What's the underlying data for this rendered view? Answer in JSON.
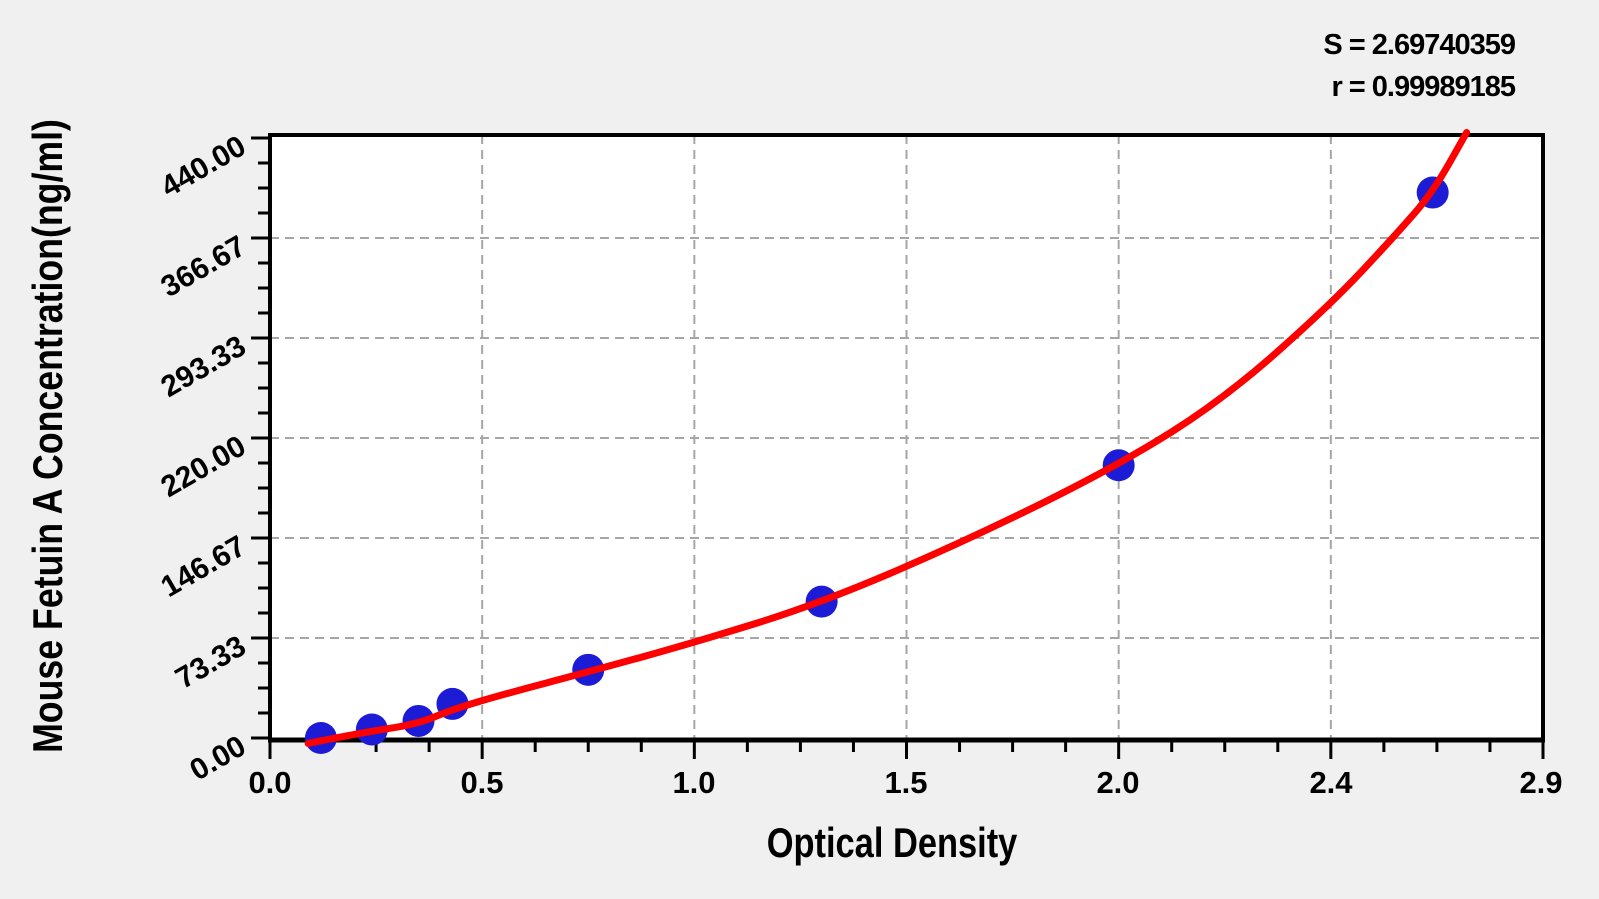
{
  "figure": {
    "background_color": "#f0f0f0",
    "plot_background_color": "#ffffff",
    "stats": {
      "s_line": "S = 2.69740359",
      "r_line": "r = 0.99989185"
    }
  },
  "chart_data": {
    "type": "scatter",
    "title": "",
    "xlabel": "Optical Density",
    "ylabel": "Mouse Fetuin A Concentration(ng/ml)",
    "x_tick_labels": [
      "0.0",
      "0.5",
      "1.0",
      "1.5",
      "2.0",
      "2.4",
      "2.9"
    ],
    "x_tick_values": [
      0.0,
      0.5,
      1.0,
      1.5,
      2.0,
      2.4,
      2.9
    ],
    "y_tick_labels": [
      "0.00",
      "73.33",
      "146.67",
      "220.00",
      "293.33",
      "366.67",
      "440.00"
    ],
    "y_tick_values": [
      0,
      73.33,
      146.67,
      220.0,
      293.33,
      366.67,
      440.0
    ],
    "xlim": [
      0.0,
      2.9
    ],
    "ylim": [
      0,
      440
    ],
    "grid": "dashed-at-major-ticks",
    "legend": "none",
    "S": "2.69740359",
    "r": "0.99989185",
    "series": [
      {
        "name": "standard-points",
        "type": "scatter",
        "marker": "circle",
        "color": "#1c1cd6",
        "points_od": [
          0.12,
          0.24,
          0.35,
          0.43,
          0.75,
          1.3,
          2.0,
          2.64
        ],
        "points_conc": [
          0,
          6.25,
          12.5,
          25,
          50,
          100,
          200,
          400
        ]
      },
      {
        "name": "fit-curve",
        "type": "line",
        "color": "#ff0000",
        "points_od": [
          0.09,
          0.12,
          0.24,
          0.35,
          0.43,
          0.55,
          0.75,
          1.0,
          1.3,
          1.65,
          2.0,
          2.2,
          2.4,
          2.55,
          2.64,
          2.72
        ],
        "points_conc": [
          -4,
          -2,
          5,
          10.5,
          21,
          32,
          48.5,
          70,
          99,
          146,
          200,
          249,
          318,
          368,
          400,
          444
        ]
      }
    ]
  }
}
